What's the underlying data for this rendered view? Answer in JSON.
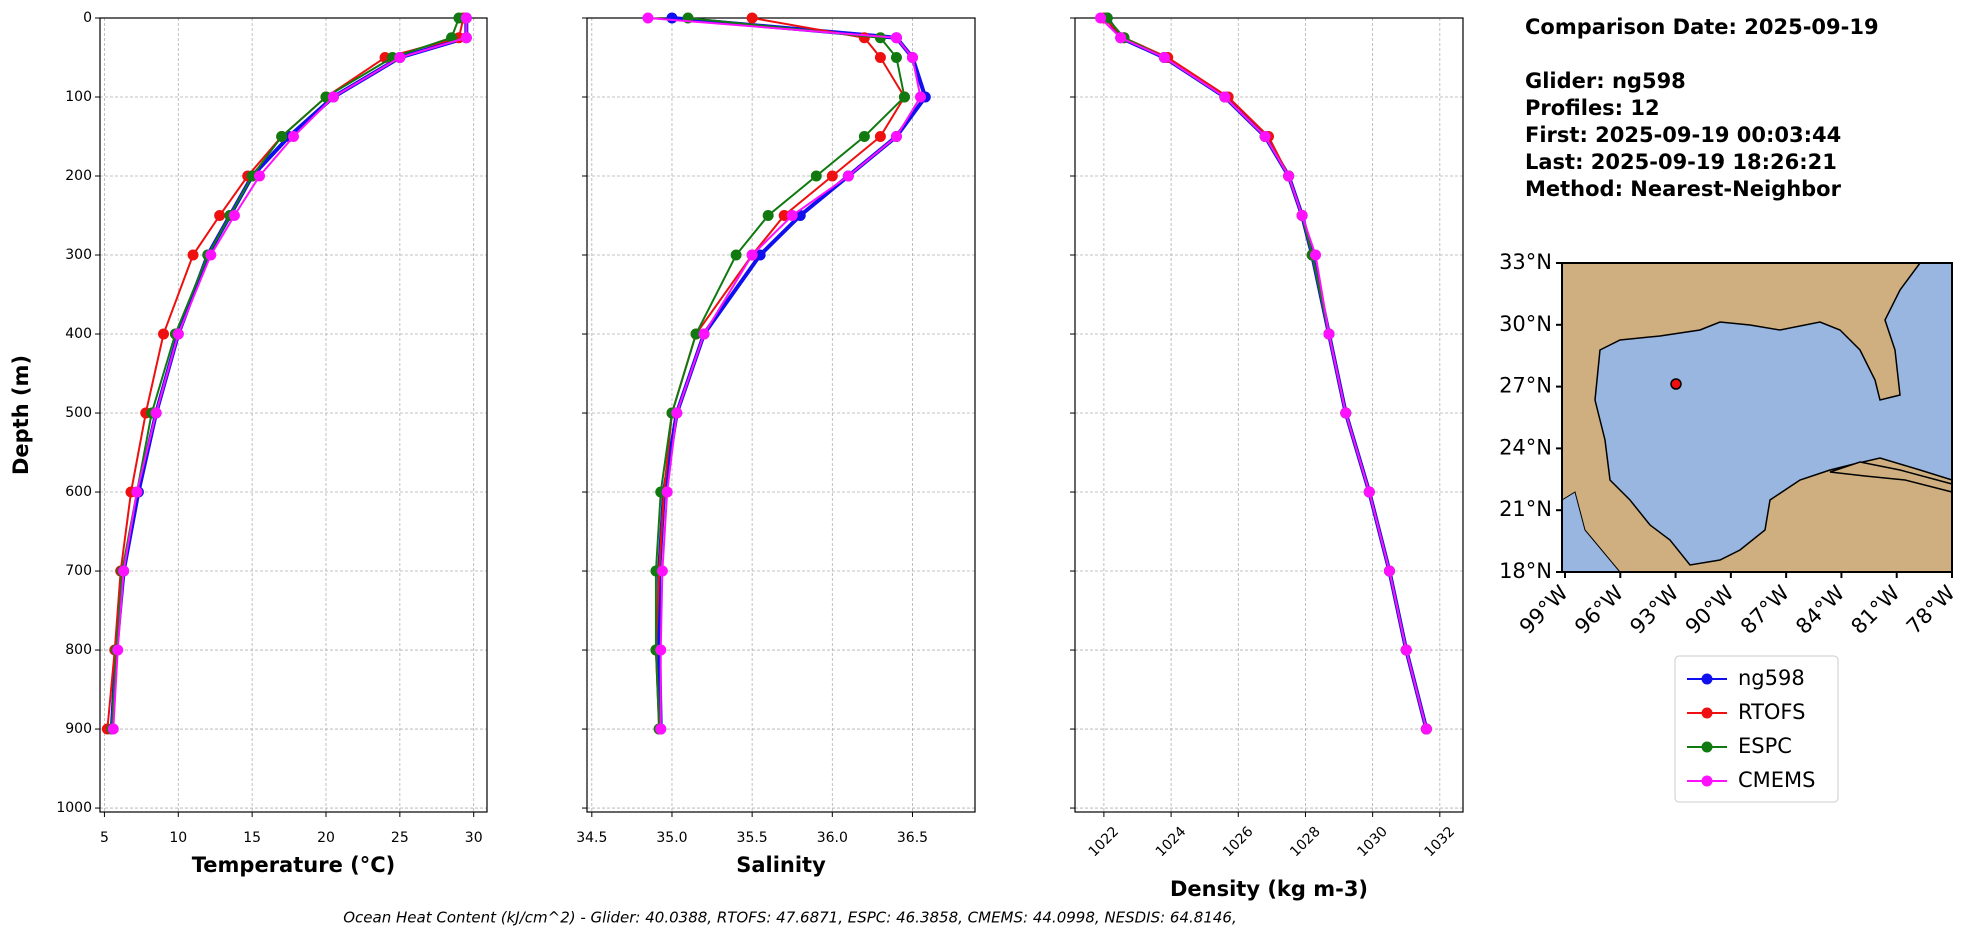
{
  "chart_data": [
    {
      "type": "line",
      "x_label": "Temperature (°C)",
      "y_label": "Depth (m)",
      "xlim": [
        4.7,
        30.9
      ],
      "xticks": [
        5,
        10,
        15,
        20,
        25,
        30
      ],
      "ylim": [
        1005,
        0
      ],
      "yticks": [
        0,
        100,
        200,
        300,
        400,
        500,
        600,
        700,
        800,
        900,
        1000
      ],
      "grid": true,
      "y": [
        0,
        25,
        50,
        100,
        150,
        200,
        250,
        300,
        400,
        500,
        600,
        700,
        800,
        900
      ],
      "series": [
        {
          "name": "ng598",
          "color": "#1010ee",
          "values": [
            29.5,
            29.5,
            25,
            20.5,
            17.5,
            15,
            13.5,
            12,
            10,
            8.5,
            7.3,
            6.3,
            5.8,
            5.5
          ]
        },
        {
          "name": "RTOFS",
          "color": "#ee1010",
          "values": [
            29.3,
            29,
            24,
            20,
            17,
            14.7,
            12.8,
            11,
            9,
            7.8,
            6.8,
            6.1,
            5.7,
            5.2
          ]
        },
        {
          "name": "ESPC",
          "color": "#107a10",
          "values": [
            29,
            28.5,
            24.5,
            20,
            17,
            15,
            13.5,
            12,
            9.8,
            8.2,
            7.2,
            6.2,
            5.8,
            5.5
          ]
        },
        {
          "name": "CMEMS",
          "color": "#ff10ff",
          "values": [
            29.5,
            29.5,
            25,
            20.5,
            17.8,
            15.5,
            13.8,
            12.2,
            10,
            8.5,
            7.2,
            6.3,
            5.9,
            5.6
          ]
        }
      ]
    },
    {
      "type": "line",
      "x_label": "Salinity",
      "xlim": [
        34.47,
        36.89
      ],
      "xticks": [
        34.5,
        35.0,
        35.5,
        36.0,
        36.5
      ],
      "ylim": [
        1005,
        0
      ],
      "yticks": [
        0,
        100,
        200,
        300,
        400,
        500,
        600,
        700,
        800,
        900,
        1000
      ],
      "grid": true,
      "y": [
        0,
        25,
        50,
        100,
        150,
        200,
        250,
        300,
        400,
        500,
        600,
        700,
        800,
        900
      ],
      "series": [
        {
          "name": "ng598",
          "color": "#1010ee",
          "values": [
            35.0,
            36.4,
            36.5,
            36.58,
            36.4,
            36.1,
            35.8,
            35.55,
            35.2,
            35.03,
            34.95,
            34.92,
            34.92,
            34.93
          ]
        },
        {
          "name": "RTOFS",
          "color": "#ee1010",
          "values": [
            35.5,
            36.2,
            36.3,
            36.45,
            36.3,
            36.0,
            35.7,
            35.5,
            35.15,
            35.0,
            34.95,
            34.92,
            34.9,
            34.92
          ]
        },
        {
          "name": "ESPC",
          "color": "#107a10",
          "values": [
            35.1,
            36.3,
            36.4,
            36.45,
            36.2,
            35.9,
            35.6,
            35.4,
            35.15,
            35.0,
            34.93,
            34.9,
            34.9,
            34.92
          ]
        },
        {
          "name": "CMEMS",
          "color": "#ff10ff",
          "values": [
            34.85,
            36.4,
            36.5,
            36.55,
            36.4,
            36.1,
            35.75,
            35.5,
            35.2,
            35.03,
            34.97,
            34.94,
            34.93,
            34.93
          ]
        }
      ]
    },
    {
      "type": "line",
      "x_label": "Density (kg m-3)",
      "xlim": [
        1021.14,
        1032.69
      ],
      "xticks": [
        1022,
        1024,
        1026,
        1028,
        1030,
        1032
      ],
      "ylim": [
        1005,
        0
      ],
      "yticks": [
        0,
        100,
        200,
        300,
        400,
        500,
        600,
        700,
        800,
        900,
        1000
      ],
      "grid": true,
      "y": [
        0,
        25,
        50,
        100,
        150,
        200,
        250,
        300,
        400,
        500,
        600,
        700,
        800,
        900
      ],
      "series": [
        {
          "name": "ng598",
          "color": "#1010ee",
          "values": [
            1022.1,
            1022.5,
            1023.8,
            1025.6,
            1026.8,
            1027.5,
            1027.9,
            1028.2,
            1028.7,
            1029.2,
            1029.9,
            1030.5,
            1031.0,
            1031.6
          ]
        },
        {
          "name": "RTOFS",
          "color": "#ee1010",
          "values": [
            1022.0,
            1022.6,
            1023.9,
            1025.7,
            1026.9,
            1027.5,
            1027.9,
            1028.2,
            1028.7,
            1029.2,
            1029.9,
            1030.5,
            1031.0,
            1031.6
          ]
        },
        {
          "name": "ESPC",
          "color": "#107a10",
          "values": [
            1022.1,
            1022.6,
            1023.8,
            1025.6,
            1026.8,
            1027.5,
            1027.9,
            1028.2,
            1028.7,
            1029.2,
            1029.9,
            1030.5,
            1031.0,
            1031.6
          ]
        },
        {
          "name": "CMEMS",
          "color": "#ff10ff",
          "values": [
            1021.9,
            1022.5,
            1023.8,
            1025.6,
            1026.8,
            1027.5,
            1027.9,
            1028.3,
            1028.7,
            1029.2,
            1029.9,
            1030.5,
            1031.0,
            1031.6
          ]
        }
      ]
    }
  ],
  "info": {
    "date": "Comparison Date: 2025-09-19",
    "lines": [
      "Glider: ng598",
      "Profiles: 12",
      "First: 2025-09-19 00:03:44",
      "Last: 2025-09-19 18:26:21",
      "Method: Nearest-Neighbor"
    ]
  },
  "map": {
    "lat_labels": [
      "33°N",
      "30°N",
      "27°N",
      "24°N",
      "21°N",
      "18°N"
    ],
    "lon_labels": [
      "99°W",
      "96°W",
      "93°W",
      "90°W",
      "87°W",
      "84°W",
      "81°W",
      "78°W"
    ]
  },
  "footer": "Ocean Heat Content (kJ/cm^2) - Glider: 40.0388,  RTOFS: 47.6871,  ESPC: 46.3858,  CMEMS: 44.0998,  NESDIS: 64.8146,"
}
